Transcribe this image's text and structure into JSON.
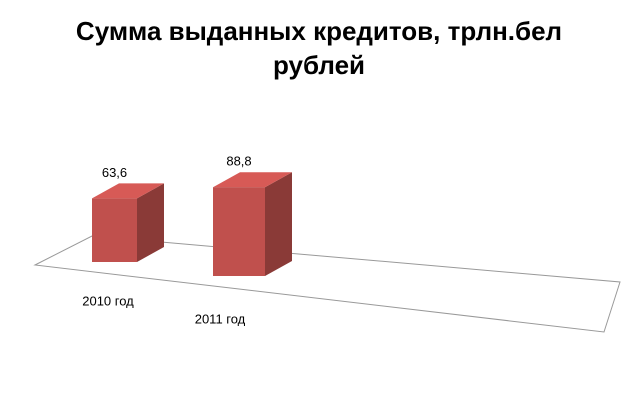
{
  "chart_data": {
    "type": "bar3d",
    "title": "Сумма выданных кредитов, трлн.бел рублей",
    "categories": [
      "2010 год",
      "2011 год"
    ],
    "values": [
      63.6,
      88.8
    ],
    "value_labels": [
      "63,6",
      "88,8"
    ],
    "color": "#c0504d"
  }
}
